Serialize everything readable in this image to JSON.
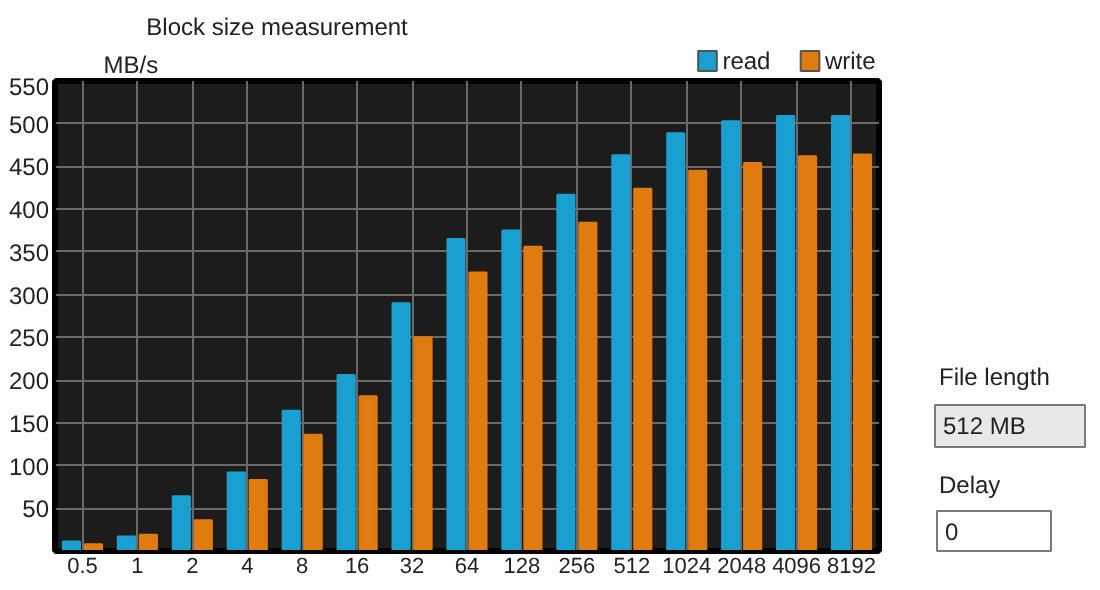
{
  "chart_data": {
    "type": "bar",
    "ylabel": "MB/s",
    "categories": [
      "0.5",
      "1",
      "2",
      "4",
      "8",
      "16",
      "32",
      "64",
      "128",
      "256",
      "512",
      "1024",
      "2048",
      "4096",
      "8192"
    ],
    "series": [
      {
        "name": "read",
        "color": "#1aa0d0",
        "values": [
          11,
          17,
          64,
          92,
          164,
          206,
          290,
          365,
          375,
          417,
          463,
          489,
          503,
          509,
          509
        ]
      },
      {
        "name": "write",
        "color": "#e07b10",
        "values": [
          8,
          19,
          36,
          83,
          136,
          181,
          250,
          326,
          356,
          384,
          424,
          445,
          454,
          462,
          464
        ]
      }
    ],
    "ylim": [
      0,
      550
    ],
    "yticks": [
      50,
      100,
      150,
      200,
      250,
      300,
      350,
      400,
      450,
      500,
      550
    ],
    "grid": true,
    "legend": "top right",
    "annotations": [
      "Block size measurement",
      "File length",
      "512 MB",
      "Delay",
      "0"
    ]
  }
}
